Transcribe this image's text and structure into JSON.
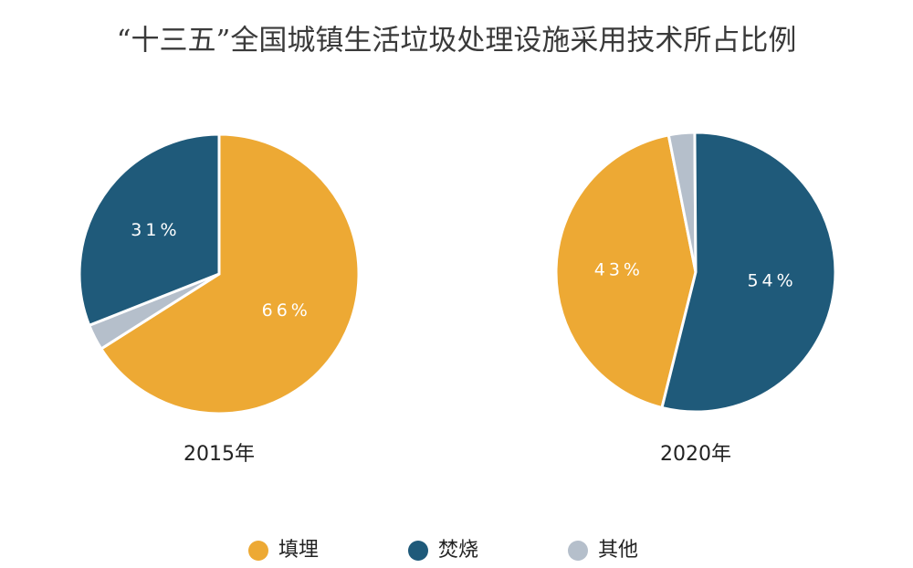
{
  "title": "“十三五”全国城镇生活垃圾处理设施采用技术所占比例",
  "chart_data": [
    {
      "type": "pie",
      "title": "2015年",
      "categories": [
        "填埋",
        "焚烧",
        "其他"
      ],
      "values": [
        66,
        31,
        3
      ],
      "value_labels": [
        "66%",
        "31%",
        null
      ],
      "colors": [
        "#eda934",
        "#1f5a7a",
        "#b5bfcb"
      ],
      "startangle": 0
    },
    {
      "type": "pie",
      "title": "2020年",
      "categories": [
        "填埋",
        "焚烧",
        "其他"
      ],
      "values": [
        43,
        54,
        3
      ],
      "value_labels": [
        "43%",
        "54%",
        null
      ],
      "colors": [
        "#eda934",
        "#1f5a7a",
        "#b5bfcb"
      ],
      "startangle": 194
    }
  ]
}
